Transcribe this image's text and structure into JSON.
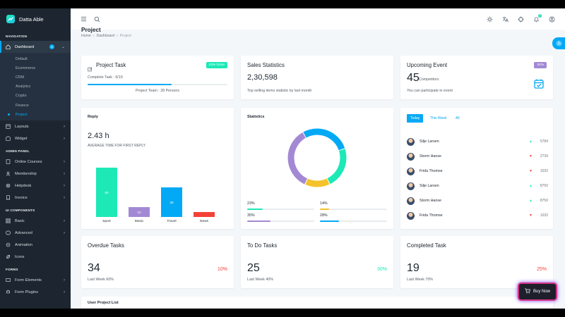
{
  "brand": {
    "name": "Datta Able"
  },
  "sidebar": {
    "caption_navigation": "NAVIGATION",
    "dashboard_label": "Dashboard",
    "dashboard_badge": "5",
    "dashboard_items": [
      "Default",
      "Ecommerce",
      "CRM",
      "Analytics",
      "Crypto",
      "Finance",
      "Project"
    ],
    "layouts_label": "Layouts",
    "widget_label": "Widget",
    "caption_admin": "ADMIN PANEL",
    "admin_items": [
      "Online Courses",
      "Membership",
      "Helpdesk",
      "Invoice"
    ],
    "caption_ui": "UI COMPONENTS",
    "ui_items": [
      "Basic",
      "Advanced",
      "Animation",
      "Icons"
    ],
    "caption_forms": "FORMS",
    "form_items": [
      "Form Elements",
      "Form Plugins"
    ]
  },
  "header": {
    "notification_count": "1"
  },
  "page": {
    "title": "Project",
    "breadcrumb": [
      "Home",
      "Dashboard",
      "Project"
    ]
  },
  "project_task": {
    "title": "Project Task",
    "badge": "23% Done",
    "complete_label": "Complete Task : 6/10",
    "progress": 0.6,
    "team_label": "Project Team : 28 Persons"
  },
  "sales": {
    "title": "Sales Statistics",
    "value": "2,30,598",
    "subtitle": "Top selling items statistic by last month"
  },
  "event": {
    "title": "Upcoming Event",
    "badge": "34%",
    "count": "45",
    "count_label": "Competitors",
    "subtitle": "You can participate in event"
  },
  "reply": {
    "title": "Reply",
    "value": "2.43 h",
    "subtitle": "AVERAGE TIME FOR FIRST REPLY"
  },
  "chart_data": {
    "type": "bar",
    "categories": [
      "Sport",
      "Music",
      "Travel",
      "News"
    ],
    "values": [
      50,
      10,
      30,
      5
    ],
    "data_labels": [
      "50",
      "10",
      "30",
      ""
    ],
    "colors": [
      "#1de9b6",
      "#a389d4",
      "#04a9f5",
      "#f44236"
    ],
    "ylim": [
      0,
      50
    ]
  },
  "statistics": {
    "title": "Statistics",
    "segments": [
      {
        "value": 23,
        "label": "23%",
        "color": "#1de9b6"
      },
      {
        "value": 14,
        "label": "14%",
        "color": "#f4c22b"
      },
      {
        "value": 35,
        "label": "35%",
        "color": "#a389d4"
      },
      {
        "value": 28,
        "label": "28%",
        "color": "#04a9f5"
      }
    ]
  },
  "users": {
    "tabs": [
      "Today",
      "This Week",
      "All"
    ],
    "rows": [
      {
        "name": "Silje Larsen",
        "trend": "up",
        "value": "5784"
      },
      {
        "name": "Storm Hanse",
        "trend": "down",
        "value": "2739"
      },
      {
        "name": "Frida Thomse",
        "trend": "down",
        "value": "1032"
      },
      {
        "name": "Silje Larsen",
        "trend": "up",
        "value": "8750"
      },
      {
        "name": "Storm Hanse",
        "trend": "up",
        "value": "8750"
      },
      {
        "name": "Frida Thomse",
        "trend": "down",
        "value": "1032"
      }
    ]
  },
  "overdue": {
    "title": "Overdue Tasks",
    "value": "34",
    "percent": "10%",
    "footer": "Last Week 60%"
  },
  "todo": {
    "title": "To Do Tasks",
    "value": "25",
    "percent": "30%",
    "footer": "Last Week 40%"
  },
  "completed": {
    "title": "Completed Task",
    "value": "19",
    "percent": "25%",
    "footer": "Last Week 70%"
  },
  "user_project_list": {
    "title": "User Project List"
  },
  "buy_now": {
    "label": "Buy Now"
  },
  "colors": {
    "primary": "#04a9f5",
    "success": "#1de9b6",
    "danger": "#f44236",
    "sidebar": "#1d2630"
  }
}
